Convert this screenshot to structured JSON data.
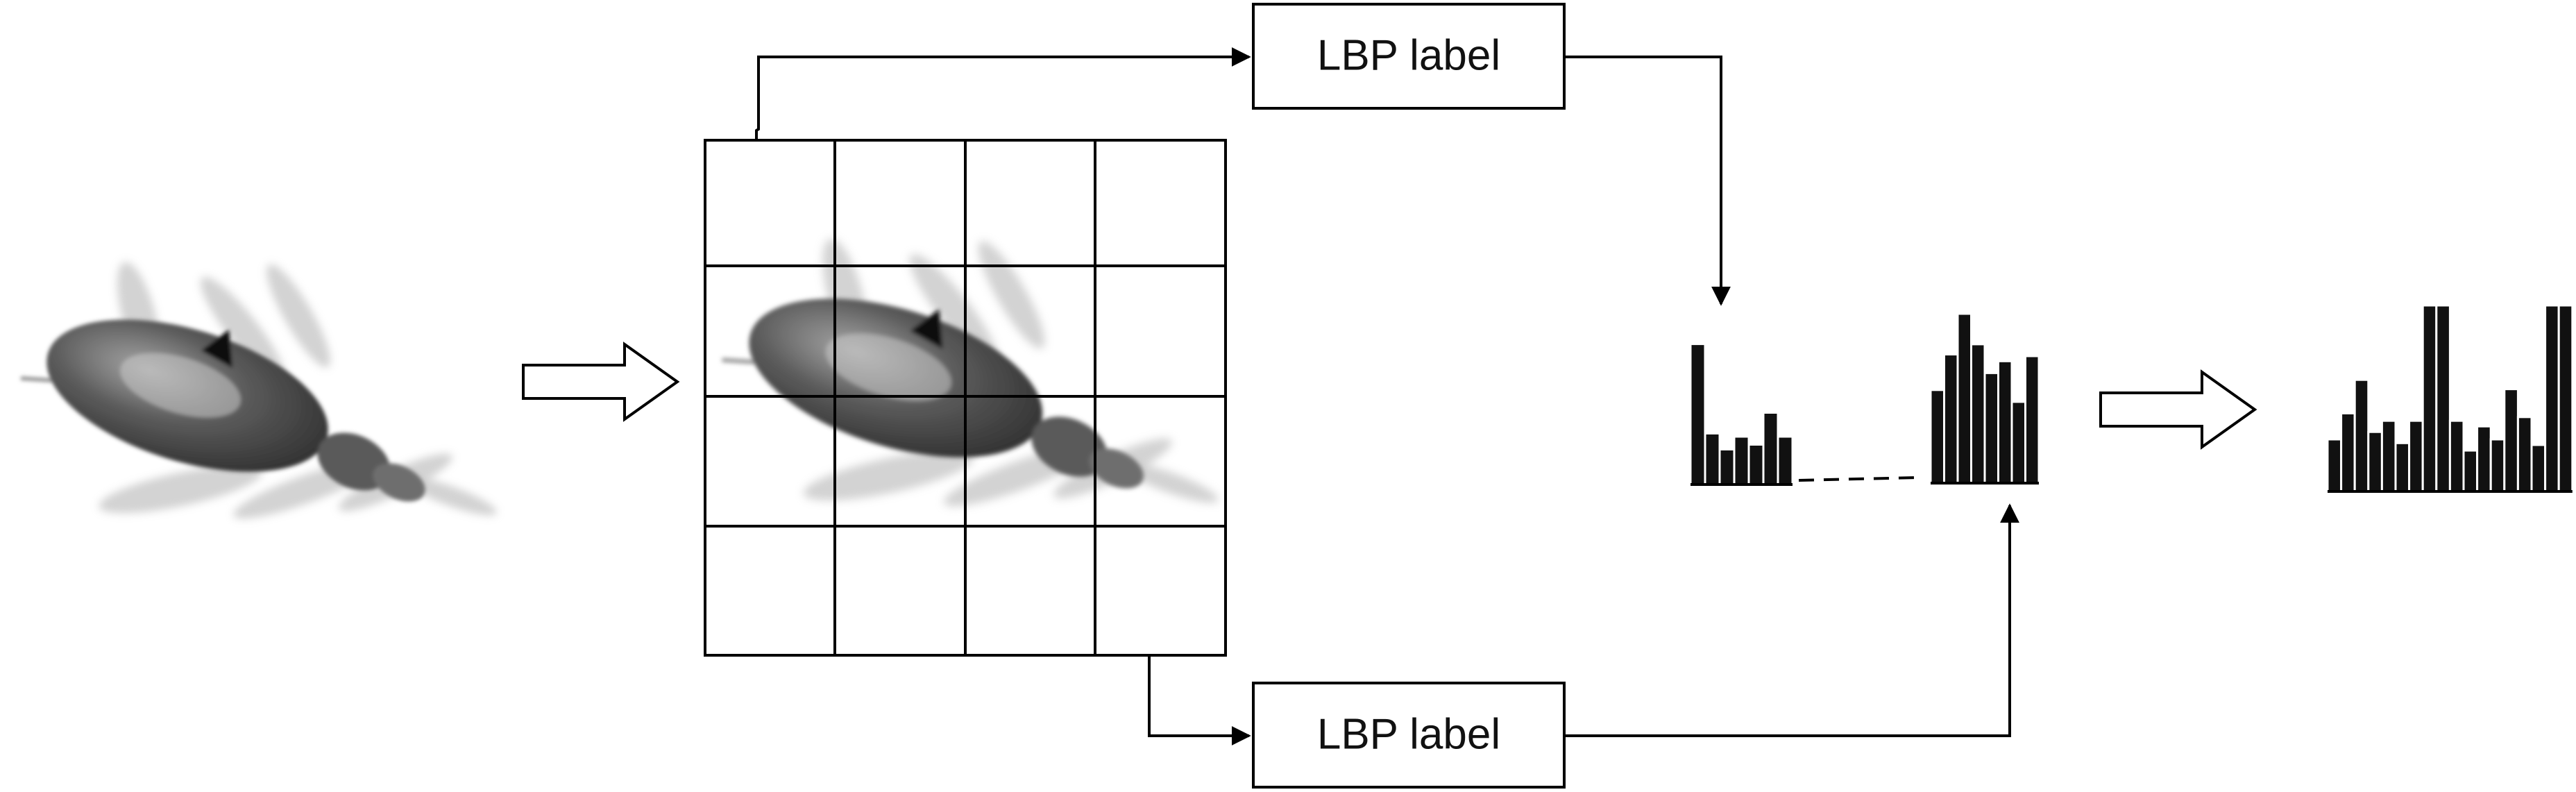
{
  "labels": {
    "top_box": "LBP label",
    "bottom_box": "LBP label"
  },
  "histograms": {
    "cell_first": [
      0.88,
      0.32,
      0.22,
      0.3,
      0.25,
      0.45,
      0.3
    ],
    "cell_last": [
      0.55,
      0.76,
      1.0,
      0.82,
      0.65,
      0.72,
      0.48,
      0.75
    ],
    "concatenated": [
      0.28,
      0.42,
      0.6,
      0.32,
      0.38,
      0.26,
      0.38,
      1.0,
      1.0,
      0.38,
      0.22,
      0.35,
      0.28,
      0.55,
      0.4,
      0.25,
      1.0,
      1.0
    ]
  },
  "icons": {
    "source": "plankton-image-icon",
    "cell_grid": "4x4-grid-icon",
    "arrow": "hollow-right-arrow-icon"
  },
  "colors": {
    "foreground": "#000000",
    "background": "#ffffff"
  }
}
